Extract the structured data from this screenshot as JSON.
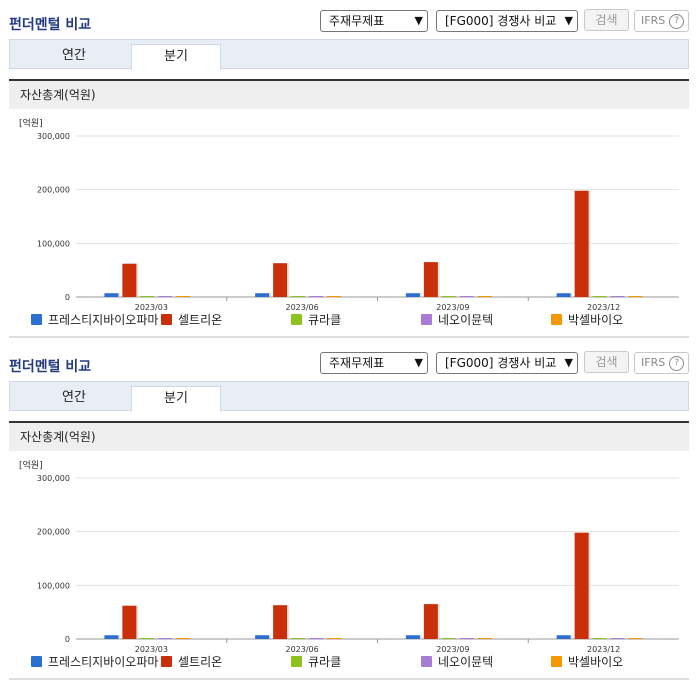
{
  "header": {
    "title": "펀더멘털 비교",
    "statement_select": "주재무제표",
    "peer_select": "[FG000] 경쟁사 비교",
    "search_button": "검색",
    "ifrs_label": "IFRS",
    "help_glyph": "?"
  },
  "tabs": [
    {
      "label": "연간",
      "active": false
    },
    {
      "label": "분기",
      "active": true
    }
  ],
  "chart_header": "자산총계(억원)",
  "colors": {
    "title": "#253b80",
    "series": [
      "#2d6fd1",
      "#c9300a",
      "#8dc21f",
      "#a87bd4",
      "#f39800"
    ]
  },
  "chart_data": {
    "type": "bar",
    "unit_label": "[억원]",
    "categories": [
      "2023/03",
      "2023/06",
      "2023/09",
      "2023/12"
    ],
    "ylim": [
      0,
      300000
    ],
    "yticks": [
      "0",
      "100,000",
      "200,000",
      "300,000"
    ],
    "grid": true,
    "legend_position": "bottom",
    "series": [
      {
        "name": "프레스티지바이오파마",
        "values": [
          7000,
          7000,
          7000,
          7000
        ]
      },
      {
        "name": "셀트리온",
        "values": [
          62000,
          63000,
          65000,
          198000
        ]
      },
      {
        "name": "큐라클",
        "values": [
          700,
          700,
          700,
          600
        ]
      },
      {
        "name": "네오이뮨텍",
        "values": [
          1800,
          1700,
          1600,
          1500
        ]
      },
      {
        "name": "박셀바이오",
        "values": [
          700,
          650,
          600,
          550
        ]
      }
    ]
  }
}
